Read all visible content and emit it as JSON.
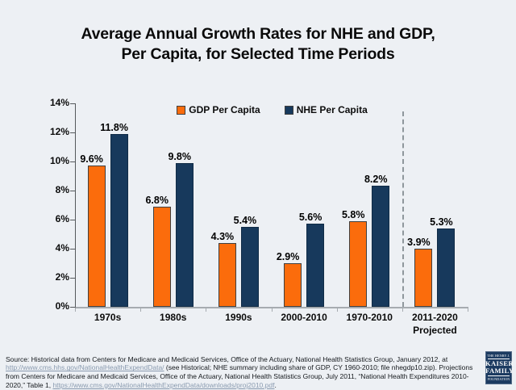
{
  "title": {
    "line1": "Average Annual Growth Rates for NHE and GDP,",
    "line2": "Per Capita, for Selected Time Periods"
  },
  "chart_data": {
    "type": "bar",
    "categories": [
      "1970s",
      "1980s",
      "1990s",
      "2000-2010",
      "1970-2010",
      "2011-2020"
    ],
    "last_category_sublabel": "Projected",
    "series": [
      {
        "name": "GDP Per Capita",
        "color": "#fb6c0c",
        "border": "#3f3f3f",
        "values": [
          9.6,
          6.8,
          4.3,
          2.9,
          5.8,
          3.9
        ]
      },
      {
        "name": "NHE Per Capita",
        "color": "#17395c",
        "border": "#102b46",
        "values": [
          11.8,
          9.8,
          5.4,
          5.6,
          8.2,
          5.3
        ]
      }
    ],
    "ylim": [
      0,
      14
    ],
    "ytick_step": 2,
    "yticklabels": [
      "0%",
      "2%",
      "4%",
      "6%",
      "8%",
      "10%",
      "12%",
      "14%"
    ],
    "label_suffix": "%",
    "legend_position": "top-center",
    "grid": false,
    "separator_after_category_index": 4
  },
  "source": {
    "seg1": "Source: Historical data from Centers for Medicare and Medicaid Services, Office of the Actuary, National Health Statistics Group, January 2012, at ",
    "link1": "http://www.cms.hhs.gov/NationalHealthExpendData/",
    "seg2": " (see Historical; NHE summary including share of GDP, CY 1960-2010; file nhegdp10.zip). Projections from Centers for Medicare and Medicaid Services, Office of the Actuary, National Health Statistics Group, July 2011, “National Health Expenditures 2010-2020,” Table 1, ",
    "link2": "https://www.cms.gov/NationalHealthExpendData/downloads/proj2010.pdf",
    "seg3": "."
  },
  "logo": {
    "line1": "THE HENRY J.",
    "line2": "KAISER",
    "line3": "FAMILY",
    "line4": "FOUNDATION"
  }
}
